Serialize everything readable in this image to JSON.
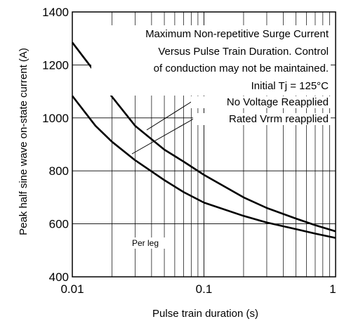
{
  "chart_data": {
    "type": "line",
    "xlabel": "Pulse train duration (s)",
    "ylabel": "Peak half sine wave on-state current (A)",
    "xscale": "log",
    "xlim": [
      0.01,
      1
    ],
    "ylim": [
      400,
      1400
    ],
    "x_tick_labels": [
      "0.01",
      "0.1",
      "1"
    ],
    "y_tick_labels": [
      "400",
      "600",
      "800",
      "1000",
      "1200",
      "1400"
    ],
    "grid": "minor log verticals, major horizontals",
    "annotation_lines": [
      "Maximum Non-repetitive Surge Current",
      "Versus Pulse Train Duration. Control",
      "of conduction may not be maintained.",
      "Initial Tj = 125°C"
    ],
    "note": "Per leg",
    "series": [
      {
        "name": "No Voltage Reapplied",
        "x": [
          0.01,
          0.015,
          0.02,
          0.03,
          0.05,
          0.07,
          0.1,
          0.2,
          0.3,
          0.5,
          0.7,
          1.0
        ],
        "y": [
          1285,
          1170,
          1080,
          970,
          880,
          835,
          785,
          700,
          660,
          620,
          595,
          572
        ]
      },
      {
        "name": "Rated Vrrm reapplied",
        "x": [
          0.01,
          0.015,
          0.02,
          0.03,
          0.05,
          0.07,
          0.1,
          0.2,
          0.3,
          0.5,
          0.7,
          1.0
        ],
        "y": [
          1083,
          970,
          910,
          840,
          765,
          720,
          680,
          630,
          605,
          580,
          563,
          547
        ]
      }
    ]
  }
}
